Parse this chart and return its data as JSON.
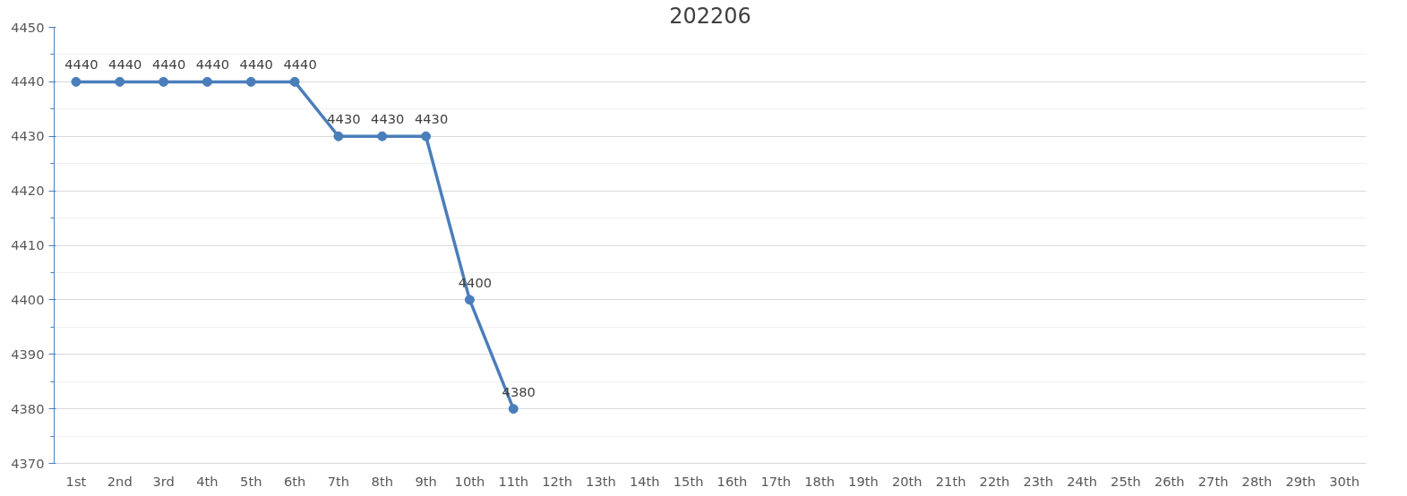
{
  "chart_data": {
    "type": "line",
    "title": "202206",
    "categories": [
      "1st",
      "2nd",
      "3rd",
      "4th",
      "5th",
      "6th",
      "7th",
      "8th",
      "9th",
      "10th",
      "11th",
      "12th",
      "13th",
      "14th",
      "15th",
      "16th",
      "17th",
      "18th",
      "19th",
      "20th",
      "21th",
      "22th",
      "23th",
      "24th",
      "25th",
      "26th",
      "27th",
      "28th",
      "29th",
      "30th"
    ],
    "series": [
      {
        "color": "#4a7ebb",
        "values": [
          4440,
          4440,
          4440,
          4440,
          4440,
          4440,
          4430,
          4430,
          4430,
          4400,
          4380,
          null,
          null,
          null,
          null,
          null,
          null,
          null,
          null,
          null,
          null,
          null,
          null,
          null,
          null,
          null,
          null,
          null,
          null,
          null
        ]
      }
    ],
    "ylim": [
      4370,
      4450
    ],
    "yticks": [
      4370,
      4380,
      4390,
      4400,
      4410,
      4420,
      4430,
      4440,
      4450
    ],
    "grid": "y",
    "marker": "circle",
    "line_style": "solid",
    "data_labels": true
  }
}
